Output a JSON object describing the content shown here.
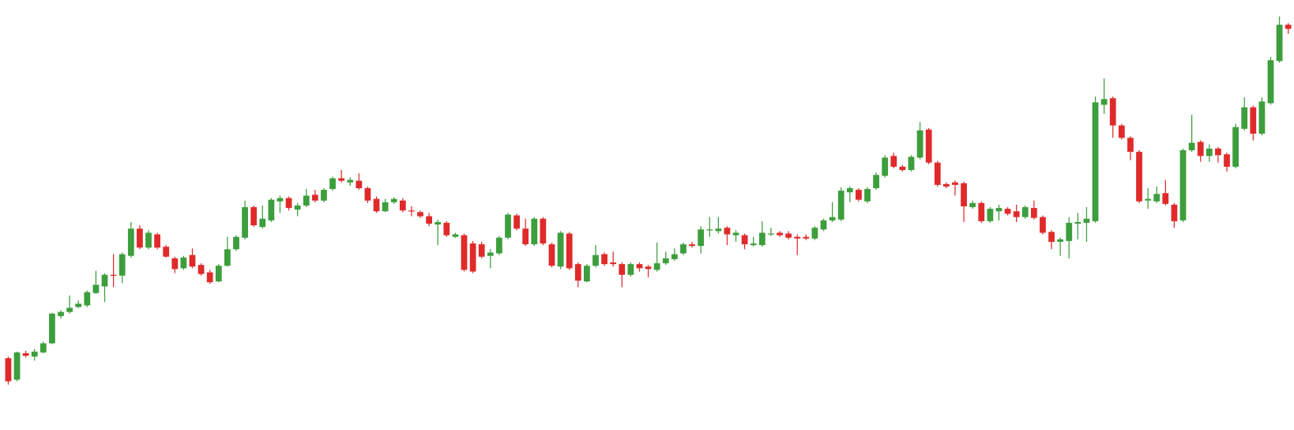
{
  "chart_data": {
    "type": "candlestick",
    "up_color": "#3c9e3c",
    "down_color": "#e02a2a",
    "ylim": [
      0,
      520
    ],
    "open": [
      86,
      60,
      92,
      88,
      93,
      104,
      137,
      142,
      148,
      150,
      165,
      173,
      187,
      186,
      210,
      243,
      220,
      236,
      221,
      207,
      195,
      211,
      199,
      190,
      179,
      198,
      218,
      232,
      269,
      245,
      253,
      276,
      280,
      266,
      271,
      284,
      277,
      291,
      304,
      299,
      301,
      292,
      279,
      264,
      275,
      277,
      265,
      263,
      258,
      248,
      250,
      233,
      235,
      225,
      224,
      210,
      213,
      232,
      259,
      243,
      224,
      255,
      224,
      197,
      237,
      200,
      179,
      198,
      212,
      202,
      200,
      187,
      200,
      197,
      193,
      201,
      206,
      213,
      224,
      222,
      241,
      240,
      244,
      235,
      235,
      223,
      223,
      236,
      238,
      237,
      233,
      233,
      231,
      242,
      253,
      254,
      287,
      290,
      276,
      292,
      307,
      331,
      318,
      314,
      329,
      363,
      323,
      297,
      299,
      298,
      269,
      274,
      252,
      264,
      267,
      264,
      257,
      268,
      257,
      239,
      227,
      228,
      249,
      250,
      252,
      393,
      401,
      368,
      353,
      336,
      277,
      276,
      286,
      272,
      253,
      338,
      348,
      331,
      340,
      333,
      318,
      364,
      390,
      358,
      395,
      446,
      490
    ],
    "high": [
      88,
      94,
      95,
      97,
      106,
      141,
      144,
      162,
      156,
      168,
      192,
      189,
      212,
      214,
      251,
      247,
      241,
      238,
      223,
      209,
      210,
      219,
      201,
      193,
      200,
      233,
      235,
      277,
      271,
      271,
      280,
      283,
      282,
      274,
      291,
      290,
      292,
      306,
      314,
      305,
      310,
      294,
      282,
      279,
      281,
      280,
      270,
      265,
      262,
      254,
      252,
      238,
      237,
      228,
      227,
      218,
      234,
      262,
      261,
      255,
      257,
      257,
      226,
      240,
      239,
      202,
      200,
      223,
      214,
      215,
      202,
      202,
      202,
      199,
      226,
      215,
      219,
      226,
      227,
      246,
      257,
      257,
      246,
      241,
      237,
      233,
      252,
      244,
      240,
      240,
      236,
      236,
      246,
      255,
      275,
      293,
      294,
      292,
      293,
      311,
      332,
      335,
      320,
      332,
      372,
      365,
      325,
      299,
      301,
      300,
      277,
      276,
      269,
      272,
      269,
      272,
      271,
      277,
      259,
      241,
      232,
      257,
      262,
      269,
      403,
      425,
      403,
      370,
      355,
      338,
      292,
      294,
      302,
      274,
      340,
      381,
      350,
      345,
      342,
      335,
      370,
      402,
      392,
      402,
      451,
      500,
      492
    ],
    "low": [
      54,
      58,
      87,
      83,
      92,
      103,
      134,
      140,
      147,
      148,
      164,
      154,
      172,
      177,
      208,
      218,
      218,
      218,
      208,
      189,
      193,
      195,
      186,
      176,
      178,
      197,
      216,
      230,
      245,
      243,
      251,
      262,
      265,
      258,
      269,
      275,
      275,
      289,
      299,
      295,
      290,
      274,
      262,
      263,
      273,
      263,
      258,
      256,
      246,
      223,
      233,
      232,
      191,
      189,
      207,
      195,
      211,
      230,
      241,
      222,
      222,
      223,
      196,
      194,
      193,
      172,
      178,
      196,
      198,
      197,
      172,
      185,
      191,
      184,
      191,
      199,
      204,
      211,
      220,
      213,
      233,
      237,
      223,
      227,
      218,
      221,
      221,
      234,
      233,
      230,
      211,
      229,
      229,
      240,
      251,
      252,
      275,
      276,
      274,
      290,
      305,
      316,
      312,
      312,
      327,
      321,
      294,
      292,
      283,
      251,
      267,
      250,
      250,
      253,
      259,
      251,
      255,
      254,
      236,
      218,
      210,
      207,
      230,
      227,
      250,
      382,
      353,
      351,
      326,
      274,
      267,
      274,
      271,
      244,
      251,
      336,
      324,
      324,
      323,
      312,
      316,
      362,
      350,
      356,
      393,
      444,
      479
    ],
    "close": [
      58,
      93,
      89,
      94,
      104,
      140,
      142,
      147,
      152,
      166,
      175,
      187,
      186,
      212,
      243,
      220,
      238,
      220,
      209,
      194,
      208,
      197,
      188,
      178,
      198,
      218,
      233,
      269,
      247,
      255,
      278,
      280,
      268,
      271,
      283,
      277,
      290,
      304,
      301,
      302,
      292,
      277,
      264,
      275,
      279,
      265,
      264,
      258,
      249,
      251,
      235,
      236,
      193,
      191,
      209,
      214,
      232,
      260,
      243,
      224,
      255,
      225,
      198,
      238,
      195,
      180,
      198,
      211,
      200,
      200,
      187,
      200,
      195,
      194,
      201,
      207,
      212,
      224,
      222,
      242,
      242,
      243,
      236,
      238,
      224,
      225,
      238,
      237,
      235,
      232,
      231,
      231,
      244,
      253,
      257,
      289,
      292,
      278,
      291,
      308,
      329,
      318,
      314,
      330,
      362,
      323,
      296,
      294,
      296,
      270,
      274,
      252,
      267,
      268,
      261,
      257,
      269,
      256,
      238,
      227,
      230,
      250,
      251,
      255,
      396,
      400,
      368,
      353,
      336,
      276,
      279,
      285,
      273,
      252,
      338,
      347,
      331,
      340,
      332,
      318,
      366,
      390,
      358,
      397,
      447,
      490,
      485
    ]
  }
}
